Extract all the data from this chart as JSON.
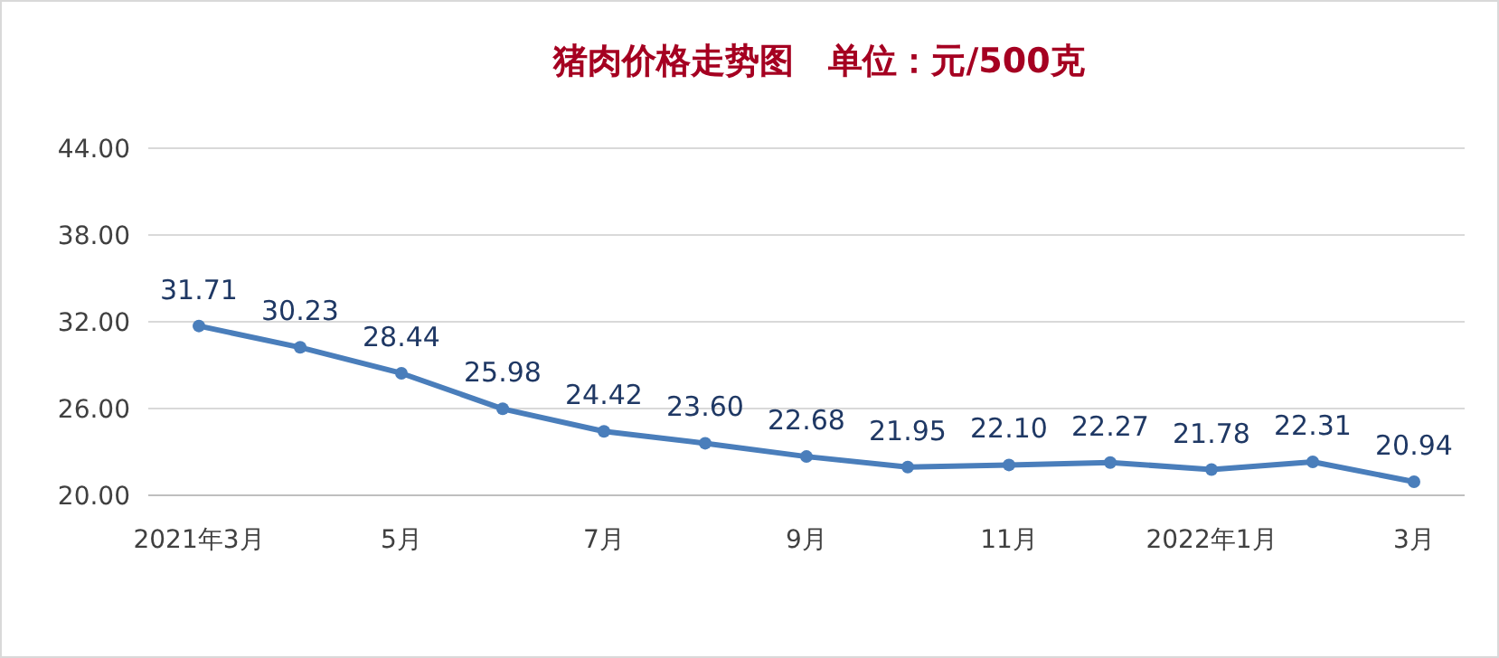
{
  "chart_data": {
    "type": "line",
    "title": "猪肉价格走势图　单位：元/500克",
    "categories": [
      "2021年3月",
      null,
      "5月",
      null,
      "7月",
      null,
      "9月",
      null,
      "11月",
      null,
      "2022年1月",
      null,
      "3月"
    ],
    "values": [
      31.71,
      30.23,
      28.44,
      25.98,
      24.42,
      23.6,
      22.68,
      21.95,
      22.1,
      22.27,
      21.78,
      22.31,
      20.94
    ],
    "value_labels": [
      "31.71",
      "30.23",
      "28.44",
      "25.98",
      "24.42",
      "23.60",
      "22.68",
      "21.95",
      "22.10",
      "22.27",
      "21.78",
      "22.31",
      "20.94"
    ],
    "color": "#4a7ebb",
    "marker": "circle",
    "grid": "y",
    "ylim": [
      20,
      44
    ],
    "yticks": [
      {
        "value": 20,
        "label": "20.00"
      },
      {
        "value": 26,
        "label": "26.00"
      },
      {
        "value": 32,
        "label": "32.00"
      },
      {
        "value": 38,
        "label": "38.00"
      },
      {
        "value": 44,
        "label": "44.00"
      }
    ]
  }
}
